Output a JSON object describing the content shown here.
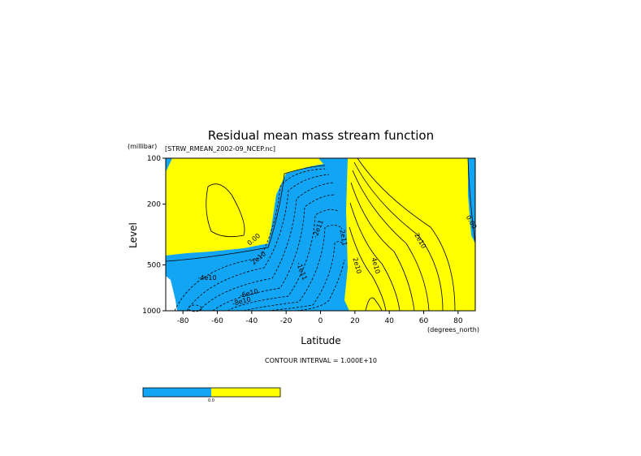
{
  "chart_data": {
    "type": "contour",
    "title": "Residual mean mass stream function",
    "subtitle": "[STRW_RMEAN_2002-09_NCEP.nc]",
    "y_label": "Level",
    "y_units": "(millibar)",
    "x_label": "Latitude",
    "x_units": "(degrees_north)",
    "xlim": [
      -90,
      90
    ],
    "xticks": [
      -80,
      -60,
      -40,
      -20,
      0,
      20,
      40,
      60,
      80
    ],
    "ylim": [
      1000,
      100
    ],
    "yticks": [
      100,
      200,
      500,
      1000
    ],
    "y_scale": "log",
    "contour_labels": [
      "0.00",
      "2e10",
      "-4e10",
      "-6e10",
      "-8e10",
      "-1e11",
      "-2e11",
      "-2e11",
      "2e10",
      "4e10",
      "2e10",
      "0.00"
    ],
    "footer": "CONTOUR INTERVAL = 1.000E+10",
    "colorbar_label": "0.0",
    "negative_color": "#12a5f4",
    "positive_color": "#ffff00"
  }
}
